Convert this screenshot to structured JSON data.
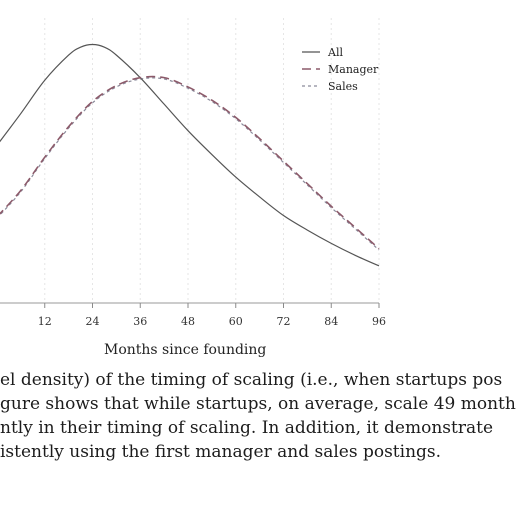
{
  "chart_data": {
    "type": "line",
    "xlabel": "Months since founding",
    "ylabel": "",
    "xlim": [
      0,
      96
    ],
    "xticks": [
      12,
      24,
      36,
      48,
      60,
      72,
      84,
      96
    ],
    "grid": "vertical",
    "legend_position": "top-right",
    "series": [
      {
        "name": "All",
        "style": "solid",
        "color": "#555555",
        "x": [
          0,
          6,
          12,
          18,
          21,
          24,
          27,
          30,
          36,
          42,
          48,
          54,
          60,
          66,
          72,
          78,
          84,
          90,
          96
        ],
        "y": [
          0.0119,
          0.0143,
          0.0168,
          0.0187,
          0.0193,
          0.0195,
          0.0193,
          0.0187,
          0.017,
          0.015,
          0.013,
          0.0112,
          0.0095,
          0.008,
          0.0066,
          0.0055,
          0.0045,
          0.0036,
          0.0028
        ]
      },
      {
        "name": "Manager",
        "style": "dashed",
        "color": "#8c5a6a",
        "x": [
          0,
          6,
          12,
          18,
          24,
          30,
          36,
          42,
          48,
          54,
          60,
          66,
          72,
          78,
          84,
          90,
          96
        ],
        "y": [
          0.0065,
          0.0085,
          0.011,
          0.0133,
          0.0152,
          0.0164,
          0.017,
          0.017,
          0.0163,
          0.0153,
          0.014,
          0.0124,
          0.0107,
          0.009,
          0.0073,
          0.0057,
          0.0041
        ]
      },
      {
        "name": "Sales",
        "style": "dotted",
        "color": "#8a8a9a",
        "x": [
          0,
          6,
          12,
          18,
          24,
          30,
          36,
          42,
          48,
          54,
          60,
          66,
          72,
          78,
          84,
          90,
          96
        ],
        "y": [
          0.0064,
          0.0084,
          0.0109,
          0.0132,
          0.0151,
          0.0163,
          0.0169,
          0.0169,
          0.0162,
          0.0152,
          0.0139,
          0.0123,
          0.0106,
          0.0089,
          0.0072,
          0.0056,
          0.004
        ]
      }
    ],
    "ylim": [
      0,
      0.0215
    ]
  },
  "caption": {
    "line1": "el density) of the timing of scaling (i.e., when startups pos",
    "line2": "gure shows that while startups, on average, scale 49 month",
    "line3": "ntly in their timing of scaling. In addition, it demonstrate",
    "line4": "istently using the first manager and sales postings."
  }
}
